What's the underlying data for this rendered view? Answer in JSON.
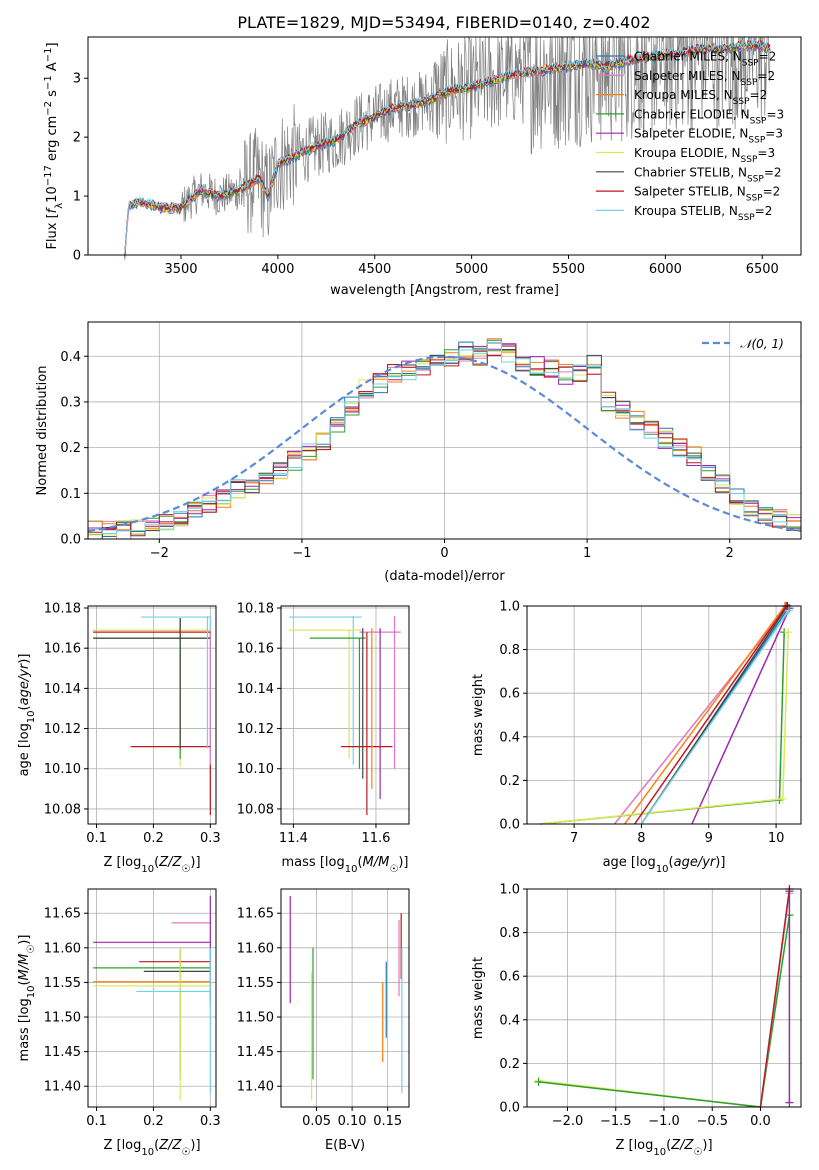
{
  "title": "PLATE=1829, MJD=53494, FIBERID=0140, z=0.402",
  "colors": {
    "Chabrier MILES": "#1f77b4",
    "Salpeter MILES": "#e377c2",
    "Kroupa MILES": "#ff7f0e",
    "Chabrier ELODIE": "#2ca02c",
    "Salpeter ELODIE": "#9c27b0",
    "Kroupa ELODIE": "#dbe85a",
    "Chabrier STELIB": "#444444",
    "Salpeter STELIB": "#c0181f",
    "Kroupa STELIB": "#76d0e6",
    "data": "#808080",
    "gaussian": "#5b8bd6"
  },
  "chart_data": [
    {
      "id": "spectrum",
      "type": "line",
      "xlabel": "wavelength [Angstrom, rest frame]",
      "ylabel": "Flux [f_λ 10^-17 erg cm^-2 s^-1 A^-1]",
      "ylabel_parts": {
        "a": "Flux [",
        "b": "f",
        "c": "λ",
        "d": "10",
        "e": "−17",
        "f": " erg cm",
        "g": "−2",
        "h": " s",
        "i": "−1",
        "j": " A",
        "k": "−1",
        "l": "]"
      },
      "xlim": [
        3020,
        6700
      ],
      "ylim": [
        0,
        3.7
      ],
      "xticks": [
        3500,
        4000,
        4500,
        5000,
        5500,
        6000,
        6500
      ],
      "yticks": [
        0,
        1,
        2,
        3
      ],
      "grid": false,
      "legend_position": "top-right",
      "series": [
        {
          "name": "Chabrier MILES, N_SSP=2",
          "label": "Chabrier MILES, N",
          "sub": "SSP",
          "val": "=2"
        },
        {
          "name": "Salpeter MILES, N_SSP=2",
          "label": "Salpeter MILES, N",
          "sub": "SSP",
          "val": "=2"
        },
        {
          "name": "Kroupa MILES, N_SSP=2",
          "label": "Kroupa MILES, N",
          "sub": "SSP",
          "val": "=2"
        },
        {
          "name": "Chabrier ELODIE, N_SSP=3",
          "label": "Chabrier ELODIE, N",
          "sub": "SSP",
          "val": "=3"
        },
        {
          "name": "Salpeter ELODIE, N_SSP=3",
          "label": "Salpeter ELODIE, N",
          "sub": "SSP",
          "val": "=3"
        },
        {
          "name": "Kroupa ELODIE, N_SSP=3",
          "label": "Kroupa ELODIE, N",
          "sub": "SSP",
          "val": "=3"
        },
        {
          "name": "Chabrier STELIB, N_SSP=2",
          "label": "Chabrier STELIB, N",
          "sub": "SSP",
          "val": "=2"
        },
        {
          "name": "Salpeter STELIB, N_SSP=2",
          "label": "Salpeter STELIB, N",
          "sub": "SSP",
          "val": "=2"
        },
        {
          "name": "Kroupa STELIB, N_SSP=2",
          "label": "Kroupa STELIB, N",
          "sub": "SSP",
          "val": "=2"
        }
      ],
      "model_continuum": [
        [
          3210,
          0.0
        ],
        [
          3230,
          0.85
        ],
        [
          3300,
          0.9
        ],
        [
          3400,
          0.8
        ],
        [
          3500,
          0.8
        ],
        [
          3600,
          1.1
        ],
        [
          3700,
          1.0
        ],
        [
          3800,
          1.1
        ],
        [
          3900,
          1.3
        ],
        [
          3950,
          1.0
        ],
        [
          4000,
          1.55
        ],
        [
          4100,
          1.7
        ],
        [
          4200,
          1.85
        ],
        [
          4300,
          1.95
        ],
        [
          4400,
          2.2
        ],
        [
          4500,
          2.35
        ],
        [
          4600,
          2.5
        ],
        [
          4700,
          2.55
        ],
        [
          4800,
          2.65
        ],
        [
          4900,
          2.8
        ],
        [
          5000,
          2.85
        ],
        [
          5100,
          2.95
        ],
        [
          5200,
          3.05
        ],
        [
          5300,
          3.1
        ],
        [
          5400,
          3.15
        ],
        [
          5500,
          3.2
        ],
        [
          5600,
          3.25
        ],
        [
          5700,
          3.2
        ],
        [
          5800,
          3.3
        ],
        [
          5900,
          3.35
        ],
        [
          6000,
          3.4
        ],
        [
          6100,
          3.45
        ],
        [
          6200,
          3.5
        ],
        [
          6300,
          3.5
        ],
        [
          6400,
          3.55
        ],
        [
          6500,
          3.55
        ],
        [
          6540,
          3.5
        ]
      ]
    },
    {
      "id": "residuals",
      "type": "line",
      "xlabel": "(data-model)/error",
      "ylabel": "Normed distribution",
      "xlim": [
        -2.5,
        2.5
      ],
      "ylim": [
        0,
        0.475
      ],
      "xticks": [
        -2,
        -1,
        0,
        1,
        2
      ],
      "yticks": [
        0.0,
        0.1,
        0.2,
        0.3,
        0.4
      ],
      "grid": true,
      "legend": "𝒩(0, 1)",
      "legend_position": "top-right",
      "hist_bins": [
        -2.5,
        2.5,
        50
      ],
      "hist_base": [
        0.018,
        0.02,
        0.02,
        0.025,
        0.03,
        0.035,
        0.045,
        0.06,
        0.075,
        0.09,
        0.11,
        0.12,
        0.13,
        0.15,
        0.17,
        0.19,
        0.21,
        0.25,
        0.29,
        0.33,
        0.34,
        0.36,
        0.37,
        0.38,
        0.39,
        0.4,
        0.41,
        0.4,
        0.42,
        0.41,
        0.39,
        0.38,
        0.37,
        0.36,
        0.36,
        0.38,
        0.3,
        0.28,
        0.26,
        0.24,
        0.22,
        0.2,
        0.18,
        0.15,
        0.12,
        0.09,
        0.07,
        0.05,
        0.045,
        0.04
      ]
    },
    {
      "id": "age-vs-Z",
      "type": "scatter",
      "xlabel": "Z [log10(Z/Z☉)]",
      "ylabel": "age  [log10(age/yr)]",
      "xlim": [
        0.085,
        0.31
      ],
      "ylim": [
        10.0725,
        10.181
      ],
      "xticks": [
        0.1,
        0.2,
        0.3
      ],
      "yticks": [
        10.08,
        10.1,
        10.12,
        10.14,
        10.16,
        10.18
      ],
      "grid": true
    },
    {
      "id": "age-vs-mass",
      "type": "scatter",
      "xlabel": "mass [log10(M/M☉)]",
      "ylabel": "",
      "xlim": [
        11.37,
        11.68
      ],
      "ylim": [
        10.0725,
        10.181
      ],
      "xticks": [
        11.4,
        11.6
      ],
      "yticks": [
        10.08,
        10.1,
        10.12,
        10.14,
        10.16,
        10.18
      ],
      "grid": true
    },
    {
      "id": "massweight-vs-age",
      "type": "line",
      "xlabel": "age  [log10(age/yr)]",
      "ylabel": "mass weight",
      "xlim": [
        6.3,
        10.37
      ],
      "ylim": [
        0,
        1.0
      ],
      "xticks": [
        7,
        8,
        9,
        10
      ],
      "yticks": [
        0.0,
        0.2,
        0.4,
        0.6,
        0.8,
        1.0
      ],
      "grid": true,
      "lines": [
        {
          "color": "Chabrier MILES",
          "points": [
            [
              8.0,
              0.0
            ],
            [
              10.18,
              0.99
            ]
          ]
        },
        {
          "color": "Salpeter MILES",
          "points": [
            [
              7.6,
              0.0
            ],
            [
              10.15,
              0.99
            ]
          ]
        },
        {
          "color": "Kroupa MILES",
          "points": [
            [
              7.75,
              0.0
            ],
            [
              10.13,
              1.0
            ]
          ]
        },
        {
          "color": "Chabrier ELODIE",
          "points": [
            [
              6.5,
              0.0
            ],
            [
              10.05,
              0.11
            ],
            [
              10.12,
              0.88
            ]
          ]
        },
        {
          "color": "Salpeter ELODIE",
          "points": [
            [
              8.75,
              0.0
            ],
            [
              10.2,
              0.99
            ]
          ]
        },
        {
          "color": "Kroupa ELODIE",
          "points": [
            [
              6.5,
              0.0
            ],
            [
              10.1,
              0.115
            ],
            [
              10.18,
              0.88
            ]
          ]
        },
        {
          "color": "Chabrier STELIB",
          "points": [
            [
              8.0,
              0.0
            ],
            [
              10.17,
              1.0
            ]
          ]
        },
        {
          "color": "Salpeter STELIB",
          "points": [
            [
              7.9,
              0.0
            ],
            [
              10.15,
              1.0
            ]
          ]
        },
        {
          "color": "Kroupa STELIB",
          "points": [
            [
              8.0,
              0.0
            ],
            [
              10.19,
              0.98
            ]
          ]
        }
      ]
    },
    {
      "id": "mass-vs-Z",
      "type": "scatter",
      "xlabel": "Z [log10(Z/Z☉)]",
      "ylabel": "mass [log10(M/M☉)]",
      "xlim": [
        0.085,
        0.31
      ],
      "ylim": [
        11.37,
        11.685
      ],
      "xticks": [
        0.1,
        0.2,
        0.3
      ],
      "yticks": [
        11.4,
        11.45,
        11.5,
        11.55,
        11.6,
        11.65
      ],
      "grid": true
    },
    {
      "id": "mass-vs-ebv",
      "type": "scatter",
      "xlabel": "E(B-V)",
      "ylabel": "",
      "xlim": [
        0.0,
        0.18
      ],
      "ylim": [
        11.37,
        11.685
      ],
      "xticks": [
        0.05,
        0.1,
        0.15
      ],
      "yticks": [
        11.4,
        11.45,
        11.5,
        11.55,
        11.6,
        11.65
      ],
      "grid": true
    },
    {
      "id": "massweight-vs-Z",
      "type": "line",
      "xlabel": "Z [log10(Z/Z☉)]",
      "ylabel": "mass weight",
      "xlim": [
        -2.42,
        0.42
      ],
      "ylim": [
        0,
        1.0
      ],
      "xticks": [
        -2.0,
        -1.5,
        -1.0,
        -0.5,
        0.0
      ],
      "yticks": [
        0.0,
        0.2,
        0.4,
        0.6,
        0.8,
        1.0
      ],
      "grid": true
    }
  ],
  "panels": {
    "age_z": {
      "ages": {
        "a": "10.08",
        "b": "10.10",
        "c": "10.12",
        "d": "10.14",
        "e": "10.16",
        "f": "10.18"
      }
    }
  }
}
